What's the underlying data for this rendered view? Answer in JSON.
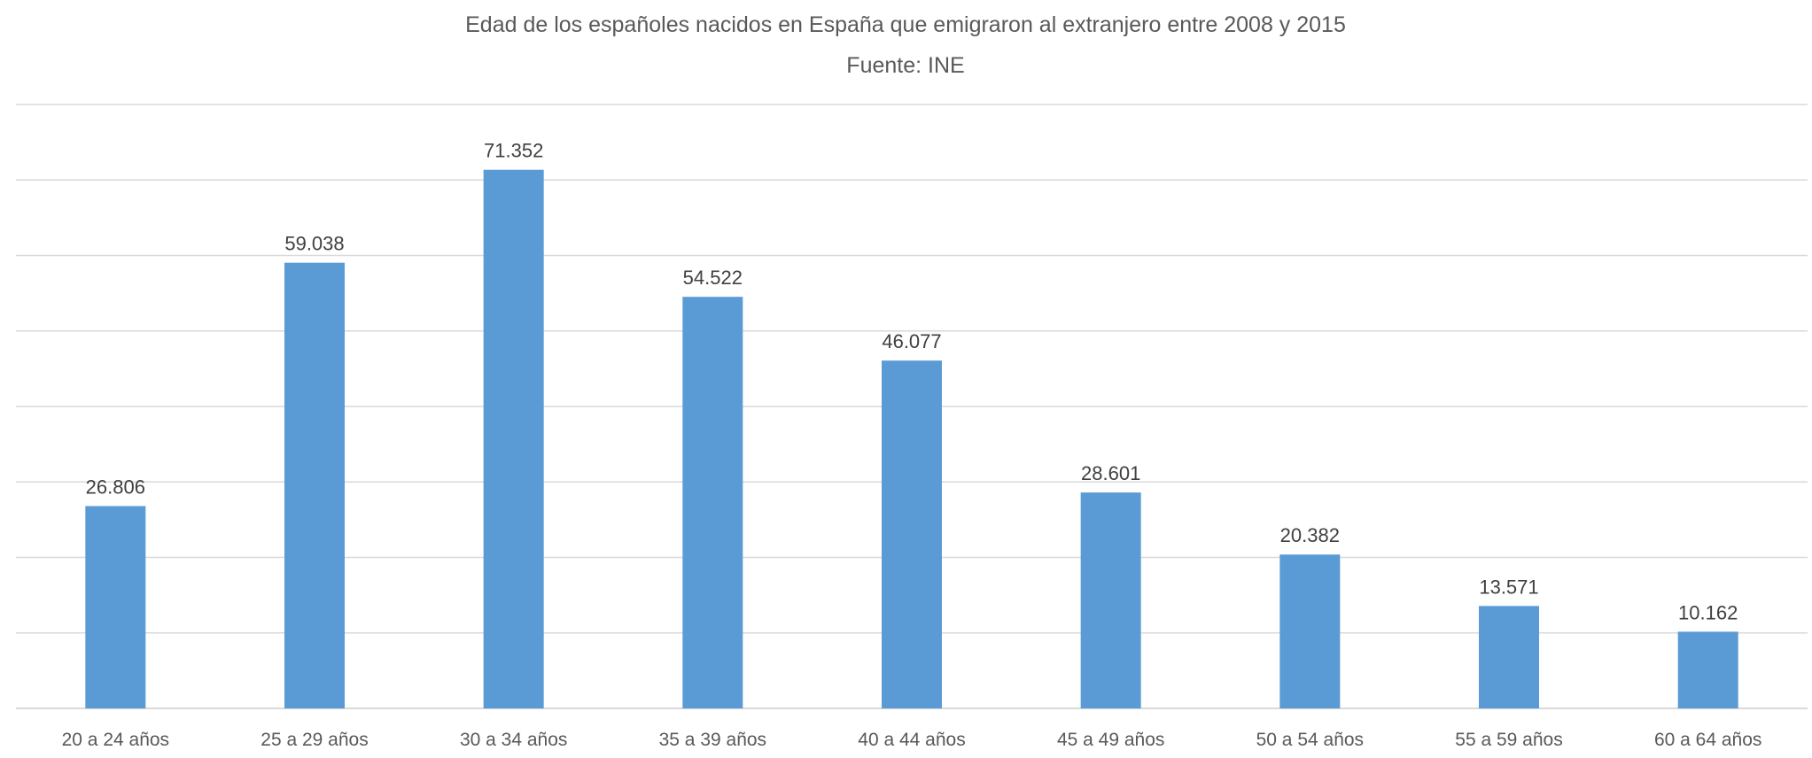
{
  "chart_data": {
    "type": "bar",
    "title": "Edad de los españoles nacidos en España que emigraron al extranjero entre 2008 y 2015",
    "subtitle": "Fuente: INE",
    "xlabel": "",
    "ylabel": "",
    "categories": [
      "20 a 24 años",
      "25 a 29 años",
      "30 a 34 años",
      "35 a 39 años",
      "40 a 44 años",
      "45 a 49 años",
      "50 a 54 años",
      "55 a 59 años",
      "60 a 64 años"
    ],
    "values": [
      26806,
      59038,
      71352,
      54522,
      46077,
      28601,
      20382,
      13571,
      10162
    ],
    "data_labels": [
      "26.806",
      "59.038",
      "71.352",
      "54.522",
      "46.077",
      "28.601",
      "20.382",
      "13.571",
      "10.162"
    ],
    "ylim": [
      0,
      80000
    ],
    "y_gridline_step": 10000,
    "y_tick_labels_shown": false,
    "grid": true,
    "legend": "none",
    "colors": {
      "bar": "#5B9BD5",
      "grid": "#D9D9D9",
      "text": "#595959"
    }
  }
}
